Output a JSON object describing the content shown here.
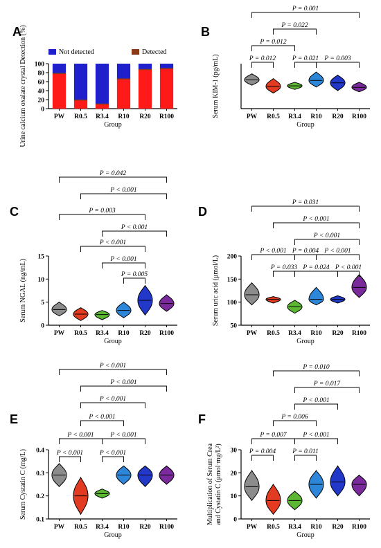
{
  "groups": [
    "PW",
    "R0.5",
    "R3.4",
    "R10",
    "R20",
    "R100"
  ],
  "colors": {
    "PW": "#8c8c8c",
    "R0.5": "#e23b22",
    "R3.4": "#5cb832",
    "R10": "#2e86d9",
    "R20": "#2238c9",
    "R100": "#7a2a9a",
    "not_detected": "#1f1fcc",
    "detected": "#8b3a16",
    "detected_bar": "#ff1a1a"
  },
  "chart_data": [
    {
      "panel": "A",
      "type": "bar",
      "ylabel": "Urine  calcium oxalate crystal Detection (%)",
      "xlabel": "Group",
      "ylim": [
        0,
        100
      ],
      "yticks": [
        0,
        20,
        40,
        60,
        80,
        100
      ],
      "categories": [
        "PW",
        "R0.5",
        "R3.4",
        "R10",
        "R20",
        "R100"
      ],
      "series": [
        {
          "name": "Not detected",
          "values": [
            22,
            81,
            90,
            34,
            13,
            11
          ]
        },
        {
          "name": "Detected",
          "values": [
            78,
            19,
            10,
            66,
            87,
            89
          ]
        }
      ]
    },
    {
      "panel": "B",
      "type": "violin",
      "ylabel": "Serum KIM-1 (pg/mL)",
      "xlabel": "Group",
      "ylim": [
        0,
        150
      ],
      "yticks": [],
      "categories": [
        "PW",
        "R0.5",
        "R3.4",
        "R10",
        "R20",
        "R100"
      ],
      "violins": [
        {
          "median": 96,
          "min": 78,
          "max": 116
        },
        {
          "median": 74,
          "min": 52,
          "max": 100
        },
        {
          "median": 76,
          "min": 64,
          "max": 88
        },
        {
          "median": 94,
          "min": 72,
          "max": 122
        },
        {
          "median": 86,
          "min": 60,
          "max": 112
        },
        {
          "median": 71,
          "min": 56,
          "max": 88
        }
      ],
      "comparisons": [
        {
          "from": 0,
          "to": 5,
          "label": "P = 0.001"
        },
        {
          "from": 1,
          "to": 3,
          "label": "P = 0.022"
        },
        {
          "from": 0,
          "to": 2,
          "label": "P = 0.012"
        },
        {
          "from": 0,
          "to": 1,
          "label": "P = 0.012"
        },
        {
          "from": 2,
          "to": 3,
          "label": "P = 0.021"
        },
        {
          "from": 3,
          "to": 5,
          "label": "P = 0.003"
        }
      ]
    },
    {
      "panel": "C",
      "type": "violin",
      "ylabel": "Serum NGAL (ng/mL)",
      "xlabel": "Group",
      "ylim": [
        0,
        15
      ],
      "yticks": [
        0,
        5,
        10,
        15
      ],
      "categories": [
        "PW",
        "R0.5",
        "R3.4",
        "R10",
        "R20",
        "R100"
      ],
      "violins": [
        {
          "median": 3.4,
          "min": 2.0,
          "max": 5.0
        },
        {
          "median": 2.4,
          "min": 1.0,
          "max": 3.8
        },
        {
          "median": 2.3,
          "min": 1.2,
          "max": 3.2
        },
        {
          "median": 3.2,
          "min": 1.6,
          "max": 5.0
        },
        {
          "median": 5.4,
          "min": 2.2,
          "max": 8.6
        },
        {
          "median": 4.7,
          "min": 3.0,
          "max": 6.6
        }
      ],
      "comparisons": [
        {
          "from": 0,
          "to": 5,
          "label": "P = 0.042"
        },
        {
          "from": 1,
          "to": 5,
          "label": "P < 0.001"
        },
        {
          "from": 0,
          "to": 4,
          "label": "P = 0.003"
        },
        {
          "from": 2,
          "to": 5,
          "label": "P < 0.001"
        },
        {
          "from": 1,
          "to": 4,
          "label": "P < 0.001"
        },
        {
          "from": 2,
          "to": 4,
          "label": "P < 0.001"
        },
        {
          "from": 3,
          "to": 4,
          "label": "P = 0.005"
        }
      ]
    },
    {
      "panel": "D",
      "type": "violin",
      "ylabel": "Serum uric acid (μmol/L)",
      "xlabel": "Group",
      "ylim": [
        50,
        200
      ],
      "yticks": [
        50,
        100,
        150,
        200
      ],
      "categories": [
        "PW",
        "R0.5",
        "R3.4",
        "R10",
        "R20",
        "R100"
      ],
      "violins": [
        {
          "median": 116,
          "min": 94,
          "max": 142
        },
        {
          "median": 106,
          "min": 98,
          "max": 112
        },
        {
          "median": 90,
          "min": 76,
          "max": 104
        },
        {
          "median": 106,
          "min": 94,
          "max": 132
        },
        {
          "median": 106,
          "min": 98,
          "max": 114
        },
        {
          "median": 132,
          "min": 110,
          "max": 160
        }
      ],
      "comparisons": [
        {
          "from": 0,
          "to": 5,
          "label": "P = 0.031"
        },
        {
          "from": 1,
          "to": 5,
          "label": "P < 0.001"
        },
        {
          "from": 2,
          "to": 5,
          "label": "P < 0.001"
        },
        {
          "from": 0,
          "to": 2,
          "label": "P < 0.001"
        },
        {
          "from": 2,
          "to": 3,
          "label": "P = 0.004"
        },
        {
          "from": 3,
          "to": 5,
          "label": "P < 0.001"
        },
        {
          "from": 1,
          "to": 2,
          "label": "P = 0.033"
        },
        {
          "from": 2,
          "to": 4,
          "label": "P = 0.024"
        },
        {
          "from": 4,
          "to": 5,
          "label": "P < 0.001"
        }
      ]
    },
    {
      "panel": "E",
      "type": "violin",
      "ylabel": "Serum Cystatin C (mg/L)",
      "xlabel": "Group",
      "ylim": [
        0.1,
        0.4
      ],
      "yticks": [
        0.1,
        0.2,
        0.3,
        0.4
      ],
      "categories": [
        "PW",
        "R0.5",
        "R3.4",
        "R10",
        "R20",
        "R100"
      ],
      "violins": [
        {
          "median": 0.29,
          "min": 0.24,
          "max": 0.34
        },
        {
          "median": 0.2,
          "min": 0.12,
          "max": 0.28
        },
        {
          "median": 0.21,
          "min": 0.19,
          "max": 0.23
        },
        {
          "median": 0.29,
          "min": 0.25,
          "max": 0.33
        },
        {
          "median": 0.29,
          "min": 0.24,
          "max": 0.33
        },
        {
          "median": 0.29,
          "min": 0.25,
          "max": 0.33
        }
      ],
      "comparisons": [
        {
          "from": 0,
          "to": 5,
          "label": "P < 0.001"
        },
        {
          "from": 1,
          "to": 5,
          "label": "P < 0.001"
        },
        {
          "from": 1,
          "to": 4,
          "label": "P < 0.001"
        },
        {
          "from": 1,
          "to": 3,
          "label": "P < 0.001"
        },
        {
          "from": 0,
          "to": 2,
          "label": "P < 0.001"
        },
        {
          "from": 2,
          "to": 4,
          "label": "P < 0.001"
        },
        {
          "from": 0,
          "to": 1,
          "label": "P < 0.001"
        },
        {
          "from": 2,
          "to": 3,
          "label": "P < 0.001"
        }
      ]
    },
    {
      "panel": "F",
      "type": "violin",
      "ylabel": "Multiplication of Serum Crea and Cystatin C (μmol·mg/L²)",
      "xlabel": "Group",
      "ylabel_line1": "Multiplication of Serum Crea",
      "ylabel_line2": "and Cystatin C (μmol·mg/L²)",
      "ylim": [
        0,
        30
      ],
      "yticks": [
        0,
        10,
        20,
        30
      ],
      "categories": [
        "PW",
        "R0.5",
        "R3.4",
        "R10",
        "R20",
        "R100"
      ],
      "violins": [
        {
          "median": 14,
          "min": 8,
          "max": 21
        },
        {
          "median": 8,
          "min": 2,
          "max": 15
        },
        {
          "median": 8,
          "min": 4,
          "max": 12
        },
        {
          "median": 15,
          "min": 9,
          "max": 21
        },
        {
          "median": 16,
          "min": 10,
          "max": 23
        },
        {
          "median": 15,
          "min": 10,
          "max": 19
        }
      ],
      "comparisons": [
        {
          "from": 1,
          "to": 5,
          "label": "P = 0.010"
        },
        {
          "from": 2,
          "to": 5,
          "label": "P = 0.017"
        },
        {
          "from": 2,
          "to": 4,
          "label": "P < 0.001"
        },
        {
          "from": 1,
          "to": 3,
          "label": "P = 0.006"
        },
        {
          "from": 0,
          "to": 2,
          "label": "P = 0.007"
        },
        {
          "from": 2,
          "to": 4,
          "label": "P < 0.001"
        },
        {
          "from": 0,
          "to": 1,
          "label": "P = 0.004"
        },
        {
          "from": 2,
          "to": 3,
          "label": "P = 0.011"
        }
      ]
    }
  ]
}
